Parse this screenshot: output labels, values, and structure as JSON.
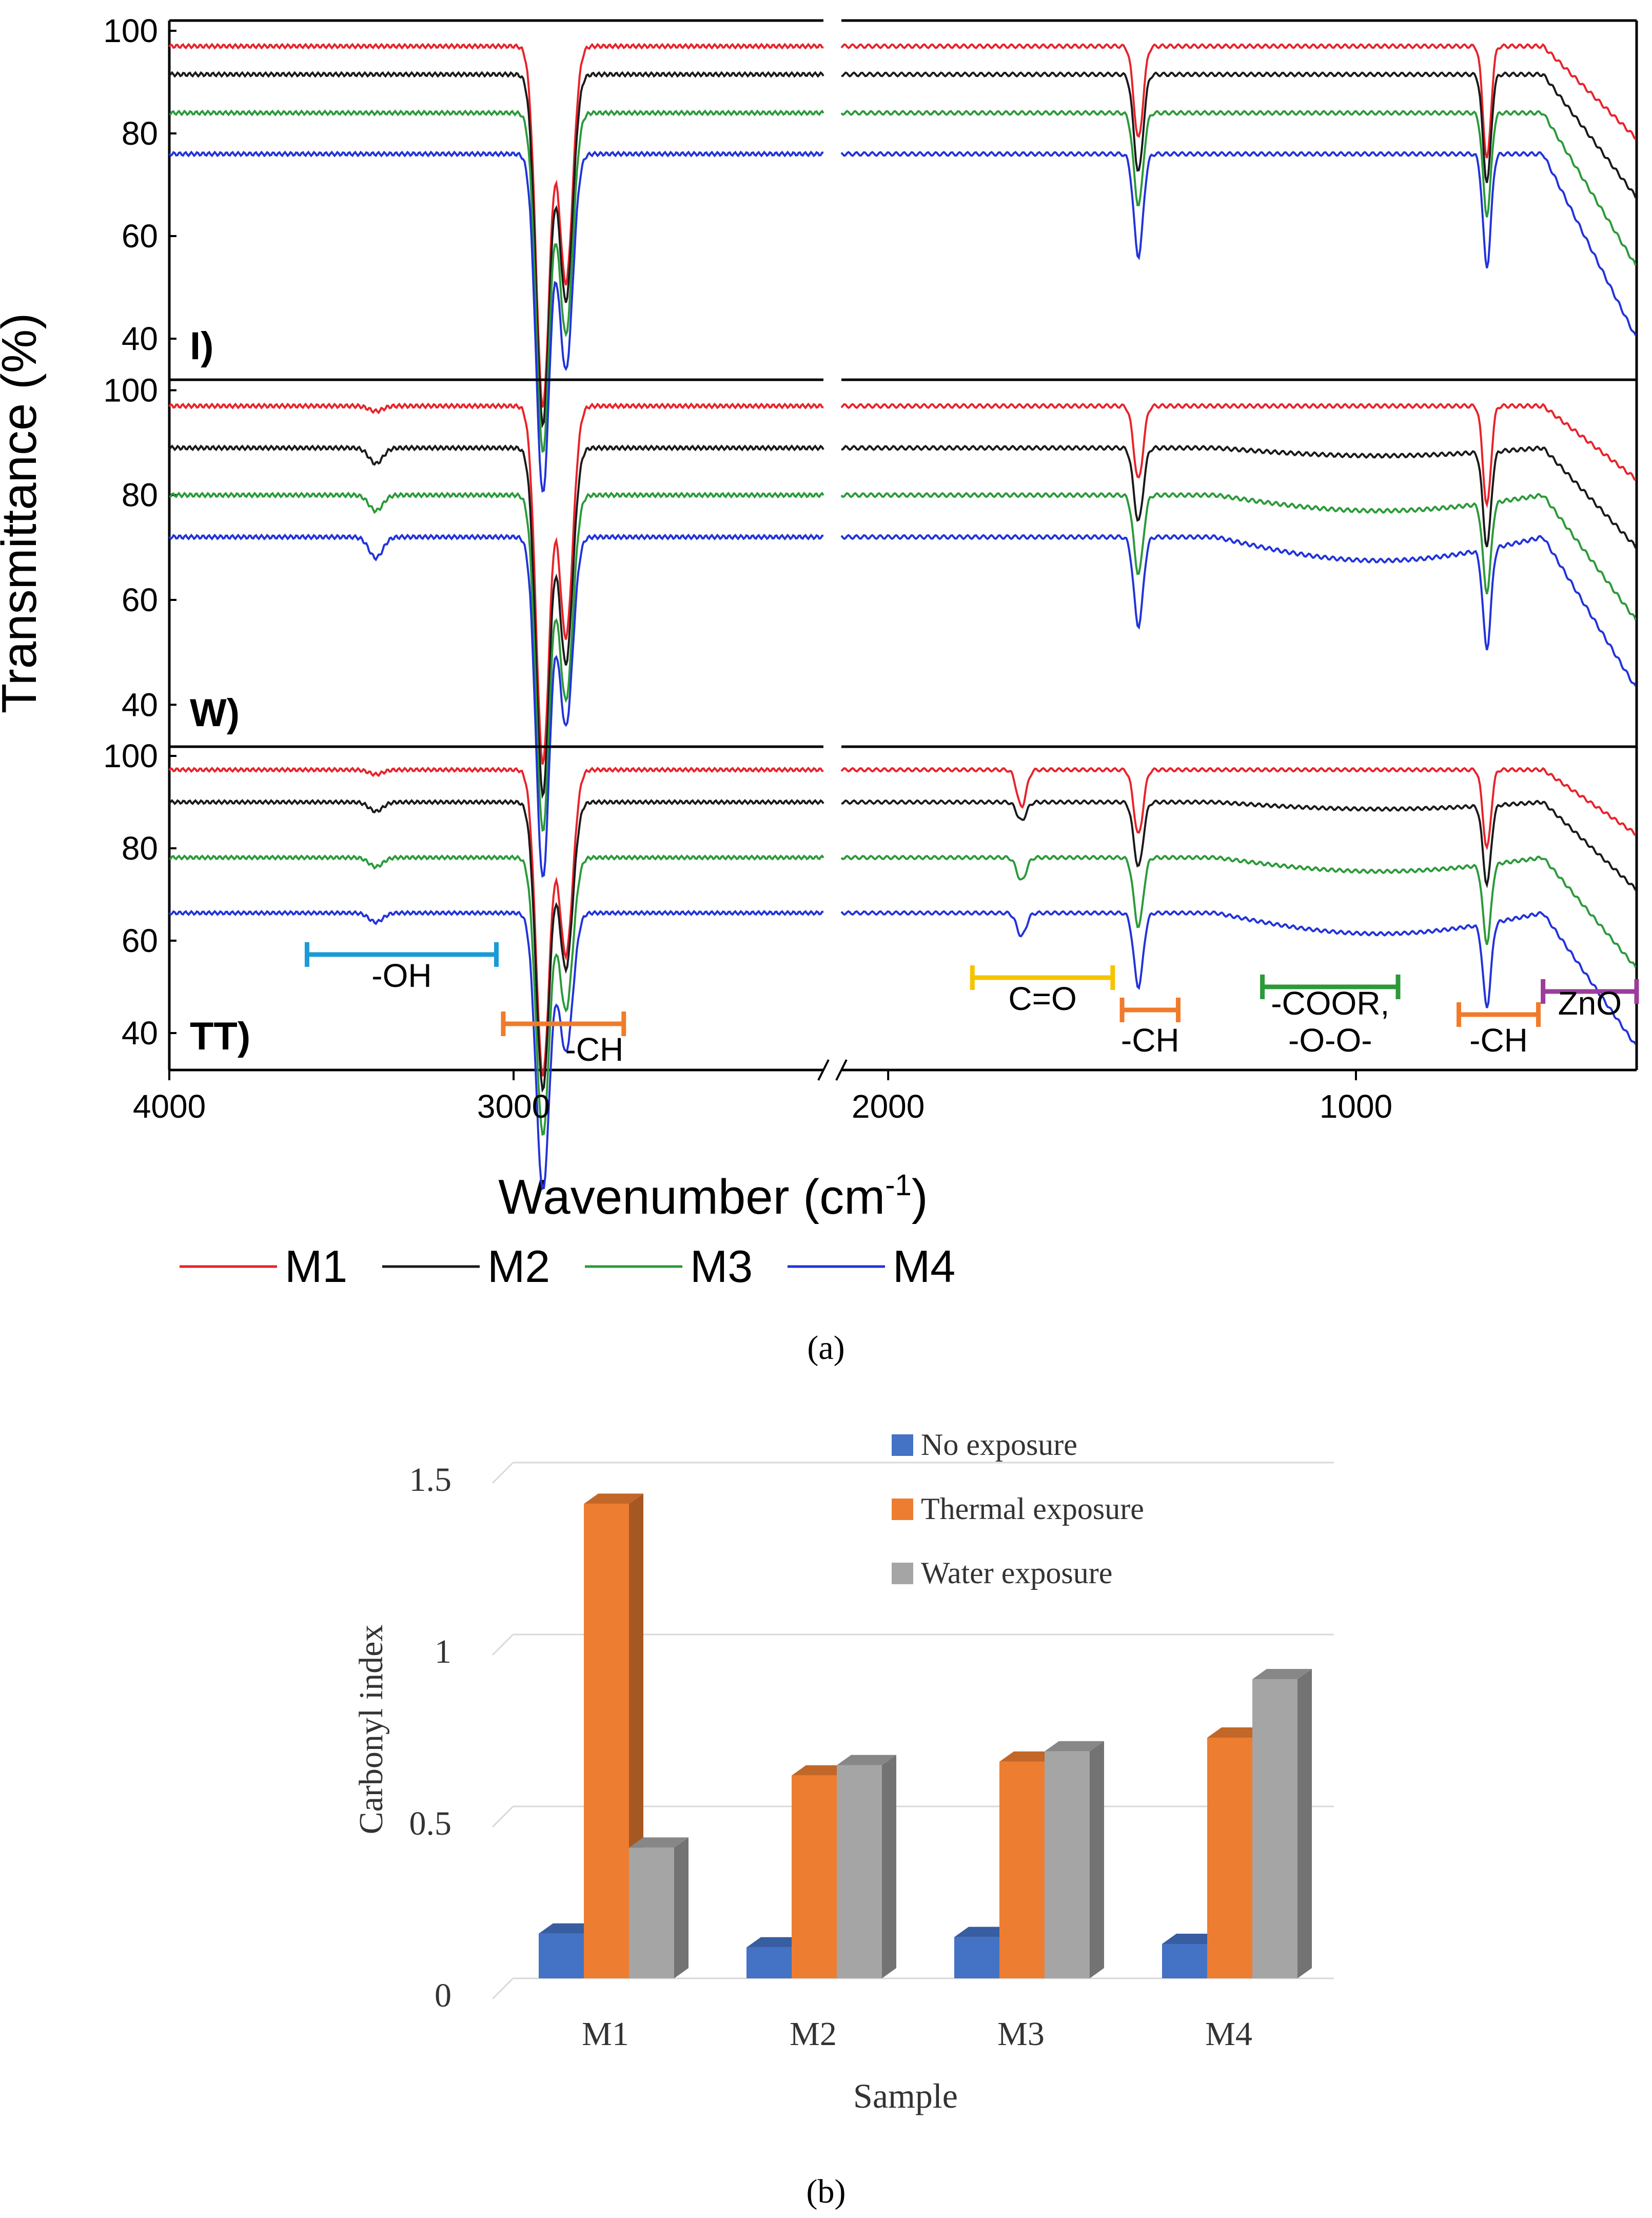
{
  "chart_data": [
    {
      "id": "a",
      "type": "line",
      "caption": "(a)",
      "ylabel": "Transmittance (%)",
      "xlabel_main": "Wavenumber (cm",
      "xlabel_sup": "-1",
      "xlabel_end": ")",
      "x_axis": {
        "reversed": true,
        "left_segment": [
          4000,
          2100
        ],
        "right_segment": [
          2100,
          400
        ],
        "break_at": 2100
      },
      "x_ticks": [
        4000,
        3000,
        2000,
        1000
      ],
      "y_ticks": [
        40,
        60,
        80,
        100
      ],
      "ylim": [
        32,
        102
      ],
      "legend": [
        "M1",
        "M2",
        "M3",
        "M4"
      ],
      "series_colors": {
        "M1": "#e8232b",
        "M2": "#1a1a1a",
        "M3": "#2b9a3a",
        "M4": "#2233d9"
      },
      "panels": [
        {
          "label": "I)",
          "baselines": {
            "M1": 97,
            "M2": 91.5,
            "M3": 84,
            "M4": 76
          },
          "dips": [
            {
              "at": 2915,
              "depth": [
                70,
                68,
                66,
                66
              ]
            },
            {
              "at": 2848,
              "depth": [
                46,
                44,
                43,
                42
              ]
            },
            {
              "at": 1465,
              "depth": [
                18,
                19,
                18,
                20
              ]
            },
            {
              "at": 720,
              "depth": [
                22,
                21,
                20,
                22
              ]
            }
          ]
        },
        {
          "label": "W)",
          "baselines": {
            "M1": 97,
            "M2": 89,
            "M3": 80,
            "M4": 72
          },
          "dips": [
            {
              "at": 3400,
              "depth": [
                1,
                3,
                3,
                4
              ]
            },
            {
              "at": 2915,
              "depth": [
                68,
                66,
                64,
                65
              ]
            },
            {
              "at": 2848,
              "depth": [
                44,
                41,
                39,
                36
              ]
            },
            {
              "at": 1465,
              "depth": [
                14,
                14,
                15,
                17
              ]
            },
            {
              "at": 720,
              "depth": [
                19,
                18,
                17,
                19
              ]
            }
          ]
        },
        {
          "label": "TT)",
          "baselines": {
            "M1": 97,
            "M2": 90,
            "M3": 78,
            "M4": 66
          },
          "dips": [
            {
              "at": 3400,
              "depth": [
                1,
                2,
                2,
                2
              ]
            },
            {
              "at": 2915,
              "depth": [
                66,
                62,
                60,
                60
              ]
            },
            {
              "at": 2848,
              "depth": [
                40,
                36,
                33,
                30
              ]
            },
            {
              "at": 1715,
              "depth": [
                8,
                4,
                5,
                5
              ]
            },
            {
              "at": 1465,
              "depth": [
                14,
                14,
                15,
                16
              ]
            },
            {
              "at": 720,
              "depth": [
                17,
                17,
                17,
                18
              ]
            }
          ],
          "annotations": [
            {
              "text": "-OH",
              "from": 3600,
              "to": 3050,
              "y": 57,
              "label_y": 50,
              "color": "#1a9bd7"
            },
            {
              "text": "-CH",
              "from": 3030,
              "to": 2680,
              "y": 42,
              "label_y": 34,
              "color": "#f07b2b"
            },
            {
              "text": "C=O",
              "from": 1820,
              "to": 1520,
              "y": 52,
              "label_y": 45,
              "color": "#f5c400"
            },
            {
              "text": "-CH",
              "from": 1500,
              "to": 1380,
              "y": 45,
              "label_y": 36,
              "color": "#f07b2b"
            },
            {
              "text": "-COOR,",
              "text2": "-O-O-",
              "from": 1200,
              "to": 910,
              "y": 50,
              "label_y": 44,
              "label2_y": 36,
              "color": "#2b9a3a"
            },
            {
              "text": "-CH",
              "from": 780,
              "to": 610,
              "y": 44,
              "label_y": 36,
              "color": "#f07b2b"
            },
            {
              "text": "ZnO",
              "from": 600,
              "to": 400,
              "y": 49,
              "label_y": 44,
              "color": "#9b3d9b"
            }
          ]
        }
      ]
    },
    {
      "id": "b",
      "type": "bar",
      "caption": "(b)",
      "categories": [
        "M1",
        "M2",
        "M3",
        "M4"
      ],
      "series": [
        {
          "name": "No exposure",
          "color": "#4472c4",
          "values": [
            0.13,
            0.09,
            0.12,
            0.1
          ]
        },
        {
          "name": "Thermal exposure",
          "color": "#ed7d31",
          "values": [
            1.38,
            0.59,
            0.63,
            0.7
          ]
        },
        {
          "name": "Water exposure",
          "color": "#a5a5a5",
          "values": [
            0.38,
            0.62,
            0.66,
            0.87
          ]
        }
      ],
      "xlabel": "Sample",
      "ylabel": "Carbonyl index",
      "y_ticks": [
        "0",
        "0.5",
        "1",
        "1.5"
      ],
      "ylim": [
        0,
        1.5
      ],
      "legend_position": "top-right"
    }
  ]
}
